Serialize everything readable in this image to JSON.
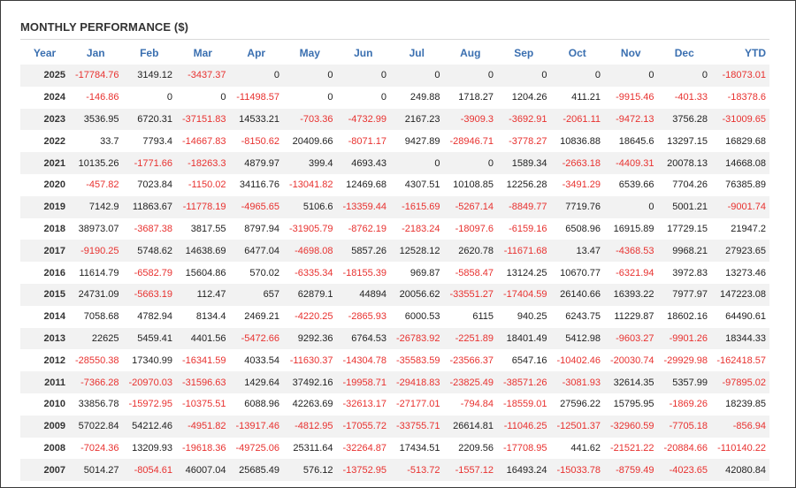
{
  "title": "MONTHLY PERFORMANCE ($)",
  "colors": {
    "header_text": "#3a6fb0",
    "negative": "#e8312f",
    "positive": "#222222",
    "stripe": "#f2f2f2"
  },
  "columns": [
    "Year",
    "Jan",
    "Feb",
    "Mar",
    "Apr",
    "May",
    "Jun",
    "Jul",
    "Aug",
    "Sep",
    "Oct",
    "Nov",
    "Dec",
    "YTD"
  ],
  "rows": [
    [
      "2025",
      "-17784.76",
      "3149.12",
      "-3437.37",
      "0",
      "0",
      "0",
      "0",
      "0",
      "0",
      "0",
      "0",
      "0",
      "-18073.01"
    ],
    [
      "2024",
      "-146.86",
      "0",
      "0",
      "-11498.57",
      "0",
      "0",
      "249.88",
      "1718.27",
      "1204.26",
      "411.21",
      "-9915.46",
      "-401.33",
      "-18378.6"
    ],
    [
      "2023",
      "3536.95",
      "6720.31",
      "-37151.83",
      "14533.21",
      "-703.36",
      "-4732.99",
      "2167.23",
      "-3909.3",
      "-3692.91",
      "-2061.11",
      "-9472.13",
      "3756.28",
      "-31009.65"
    ],
    [
      "2022",
      "33.7",
      "7793.4",
      "-14667.83",
      "-8150.62",
      "20409.66",
      "-8071.17",
      "9427.89",
      "-28946.71",
      "-3778.27",
      "10836.88",
      "18645.6",
      "13297.15",
      "16829.68"
    ],
    [
      "2021",
      "10135.26",
      "-1771.66",
      "-18263.3",
      "4879.97",
      "399.4",
      "4693.43",
      "0",
      "0",
      "1589.34",
      "-2663.18",
      "-4409.31",
      "20078.13",
      "14668.08"
    ],
    [
      "2020",
      "-457.82",
      "7023.84",
      "-1150.02",
      "34116.76",
      "-13041.82",
      "12469.68",
      "4307.51",
      "10108.85",
      "12256.28",
      "-3491.29",
      "6539.66",
      "7704.26",
      "76385.89"
    ],
    [
      "2019",
      "7142.9",
      "11863.67",
      "-11778.19",
      "-4965.65",
      "5106.6",
      "-13359.44",
      "-1615.69",
      "-5267.14",
      "-8849.77",
      "7719.76",
      "0",
      "5001.21",
      "-9001.74"
    ],
    [
      "2018",
      "38973.07",
      "-3687.38",
      "3817.55",
      "8797.94",
      "-31905.79",
      "-8762.19",
      "-2183.24",
      "-18097.6",
      "-6159.16",
      "6508.96",
      "16915.89",
      "17729.15",
      "21947.2"
    ],
    [
      "2017",
      "-9190.25",
      "5748.62",
      "14638.69",
      "6477.04",
      "-4698.08",
      "5857.26",
      "12528.12",
      "2620.78",
      "-11671.68",
      "13.47",
      "-4368.53",
      "9968.21",
      "27923.65"
    ],
    [
      "2016",
      "11614.79",
      "-6582.79",
      "15604.86",
      "570.02",
      "-6335.34",
      "-18155.39",
      "969.87",
      "-5858.47",
      "13124.25",
      "10670.77",
      "-6321.94",
      "3972.83",
      "13273.46"
    ],
    [
      "2015",
      "24731.09",
      "-5663.19",
      "112.47",
      "657",
      "62879.1",
      "44894",
      "20056.62",
      "-33551.27",
      "-17404.59",
      "26140.66",
      "16393.22",
      "7977.97",
      "147223.08"
    ],
    [
      "2014",
      "7058.68",
      "4782.94",
      "8134.4",
      "2469.21",
      "-4220.25",
      "-2865.93",
      "6000.53",
      "6115",
      "940.25",
      "6243.75",
      "11229.87",
      "18602.16",
      "64490.61"
    ],
    [
      "2013",
      "22625",
      "5459.41",
      "4401.56",
      "-5472.66",
      "9292.36",
      "6764.53",
      "-26783.92",
      "-2251.89",
      "18401.49",
      "5412.98",
      "-9603.27",
      "-9901.26",
      "18344.33"
    ],
    [
      "2012",
      "-28550.38",
      "17340.99",
      "-16341.59",
      "4033.54",
      "-11630.37",
      "-14304.78",
      "-35583.59",
      "-23566.37",
      "6547.16",
      "-10402.46",
      "-20030.74",
      "-29929.98",
      "-162418.57"
    ],
    [
      "2011",
      "-7366.28",
      "-20970.03",
      "-31596.63",
      "1429.64",
      "37492.16",
      "-19958.71",
      "-29418.83",
      "-23825.49",
      "-38571.26",
      "-3081.93",
      "32614.35",
      "5357.99",
      "-97895.02"
    ],
    [
      "2010",
      "33856.78",
      "-15972.95",
      "-10375.51",
      "6088.96",
      "42263.69",
      "-32613.17",
      "-27177.01",
      "-794.84",
      "-18559.01",
      "27596.22",
      "15795.95",
      "-1869.26",
      "18239.85"
    ],
    [
      "2009",
      "57022.84",
      "54212.46",
      "-4951.82",
      "-13917.46",
      "-4812.95",
      "-17055.72",
      "-33755.71",
      "26614.81",
      "-11046.25",
      "-12501.37",
      "-32960.59",
      "-7705.18",
      "-856.94"
    ],
    [
      "2008",
      "-7024.36",
      "13209.93",
      "-19618.36",
      "-49725.06",
      "25311.64",
      "-32264.87",
      "17434.51",
      "2209.56",
      "-17708.95",
      "441.62",
      "-21521.22",
      "-20884.66",
      "-110140.22"
    ],
    [
      "2007",
      "5014.27",
      "-8054.61",
      "46007.04",
      "25685.49",
      "576.12",
      "-13752.95",
      "-513.72",
      "-1557.12",
      "16493.24",
      "-15033.78",
      "-8759.49",
      "-4023.65",
      "42080.84"
    ]
  ]
}
